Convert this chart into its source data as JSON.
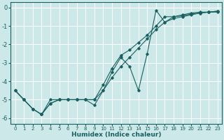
{
  "xlabel": "Humidex (Indice chaleur)",
  "background_color": "#cce8e8",
  "grid_color": "#ffffff",
  "line_color": "#1a6060",
  "xlim": [
    -0.5,
    23.5
  ],
  "ylim": [
    -6.3,
    0.3
  ],
  "xticks": [
    0,
    1,
    2,
    3,
    4,
    5,
    6,
    7,
    8,
    9,
    10,
    11,
    12,
    13,
    14,
    15,
    16,
    17,
    18,
    19,
    20,
    21,
    22,
    23
  ],
  "yticks": [
    0,
    -1,
    -2,
    -3,
    -4,
    -5,
    -6
  ],
  "line1_x": [
    0,
    1,
    2,
    3,
    4,
    5,
    6,
    7,
    8,
    9,
    10,
    11,
    12,
    13,
    14,
    15,
    16,
    17,
    18,
    19,
    20,
    21,
    22,
    23
  ],
  "line1_y": [
    -4.5,
    -5.0,
    -5.5,
    -5.8,
    -5.0,
    -5.0,
    -5.0,
    -5.0,
    -5.0,
    -5.3,
    -4.5,
    -3.5,
    -2.7,
    -3.2,
    -4.5,
    -2.5,
    -0.15,
    -0.8,
    -0.5,
    -0.4,
    -0.3,
    -0.25,
    -0.25,
    -0.25
  ],
  "line2_x": [
    0,
    1,
    2,
    3,
    4,
    5,
    6,
    7,
    8,
    9,
    10,
    11,
    12,
    13,
    14,
    15,
    16,
    17,
    18,
    19,
    20,
    21,
    22,
    23
  ],
  "line2_y": [
    -4.5,
    -5.0,
    -5.5,
    -5.8,
    -5.2,
    -5.0,
    -5.0,
    -5.0,
    -5.0,
    -5.0,
    -4.5,
    -3.8,
    -3.2,
    -2.7,
    -2.2,
    -1.7,
    -1.2,
    -0.8,
    -0.6,
    -0.5,
    -0.4,
    -0.3,
    -0.25,
    -0.2
  ],
  "line3_x": [
    0,
    1,
    2,
    3,
    4,
    5,
    6,
    7,
    8,
    9,
    10,
    11,
    12,
    13,
    14,
    15,
    16,
    17,
    18,
    19,
    20,
    21,
    22,
    23
  ],
  "line3_y": [
    -4.5,
    -5.0,
    -5.5,
    -5.8,
    -5.2,
    -5.0,
    -5.0,
    -5.0,
    -5.0,
    -5.0,
    -4.2,
    -3.3,
    -2.6,
    -2.3,
    -1.9,
    -1.5,
    -1.0,
    -0.5,
    -0.5,
    -0.45,
    -0.35,
    -0.3,
    -0.25,
    -0.2
  ]
}
